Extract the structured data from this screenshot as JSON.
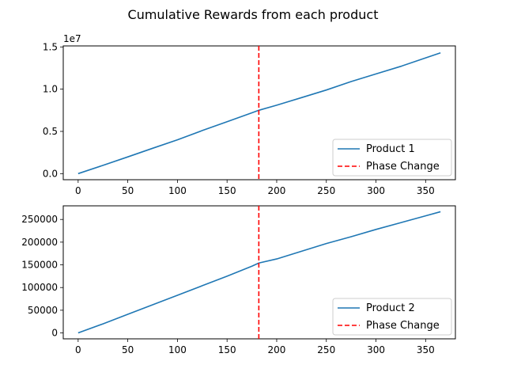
{
  "figure": {
    "title": "Cumulative Rewards from each product"
  },
  "chart_data": [
    {
      "type": "line",
      "title": "",
      "xlabel": "",
      "ylabel": "",
      "xlim": [
        -15,
        380
      ],
      "ylim": [
        -720000,
        15120000
      ],
      "y_offset_text": "1e7",
      "x_ticks": [
        0,
        50,
        100,
        150,
        200,
        250,
        300,
        350
      ],
      "x_tick_labels": [
        "0",
        "50",
        "100",
        "150",
        "200",
        "250",
        "300",
        "350"
      ],
      "y_ticks": [
        0,
        5000000,
        10000000,
        15000000
      ],
      "y_tick_labels": [
        "0.0",
        "0.5",
        "1.0",
        "1.5"
      ],
      "grid": false,
      "legend_position": "lower-right",
      "series": [
        {
          "name": "Product 1",
          "color": "#1f77b4",
          "style": "solid",
          "x": [
            0,
            25,
            50,
            75,
            100,
            125,
            150,
            175,
            182,
            200,
            225,
            250,
            275,
            300,
            325,
            350,
            365
          ],
          "y": [
            0,
            980000,
            1980000,
            3000000,
            4000000,
            5100000,
            6150000,
            7200000,
            7500000,
            8100000,
            9000000,
            9900000,
            10900000,
            11800000,
            12700000,
            13700000,
            14300000
          ]
        }
      ],
      "vlines": [
        {
          "name": "Phase Change",
          "x": 182,
          "color": "#ff0000",
          "style": "dashed"
        }
      ]
    },
    {
      "type": "line",
      "title": "",
      "xlabel": "",
      "ylabel": "",
      "xlim": [
        -15,
        380
      ],
      "ylim": [
        -13000,
        280000
      ],
      "x_ticks": [
        0,
        50,
        100,
        150,
        200,
        250,
        300,
        350
      ],
      "x_tick_labels": [
        "0",
        "50",
        "100",
        "150",
        "200",
        "250",
        "300",
        "350"
      ],
      "y_ticks": [
        0,
        50000,
        100000,
        150000,
        200000,
        250000
      ],
      "y_tick_labels": [
        "0",
        "50000",
        "100000",
        "150000",
        "200000",
        "250000"
      ],
      "grid": false,
      "legend_position": "lower-right",
      "series": [
        {
          "name": "Product 2",
          "color": "#1f77b4",
          "style": "solid",
          "x": [
            0,
            25,
            50,
            75,
            100,
            125,
            150,
            175,
            182,
            200,
            225,
            250,
            275,
            300,
            325,
            350,
            365
          ],
          "y": [
            0,
            20000,
            41000,
            62000,
            83000,
            104000,
            125000,
            147000,
            154000,
            163000,
            180000,
            197000,
            212000,
            228000,
            243000,
            258000,
            267000
          ]
        }
      ],
      "vlines": [
        {
          "name": "Phase Change",
          "x": 182,
          "color": "#ff0000",
          "style": "dashed"
        }
      ]
    }
  ]
}
